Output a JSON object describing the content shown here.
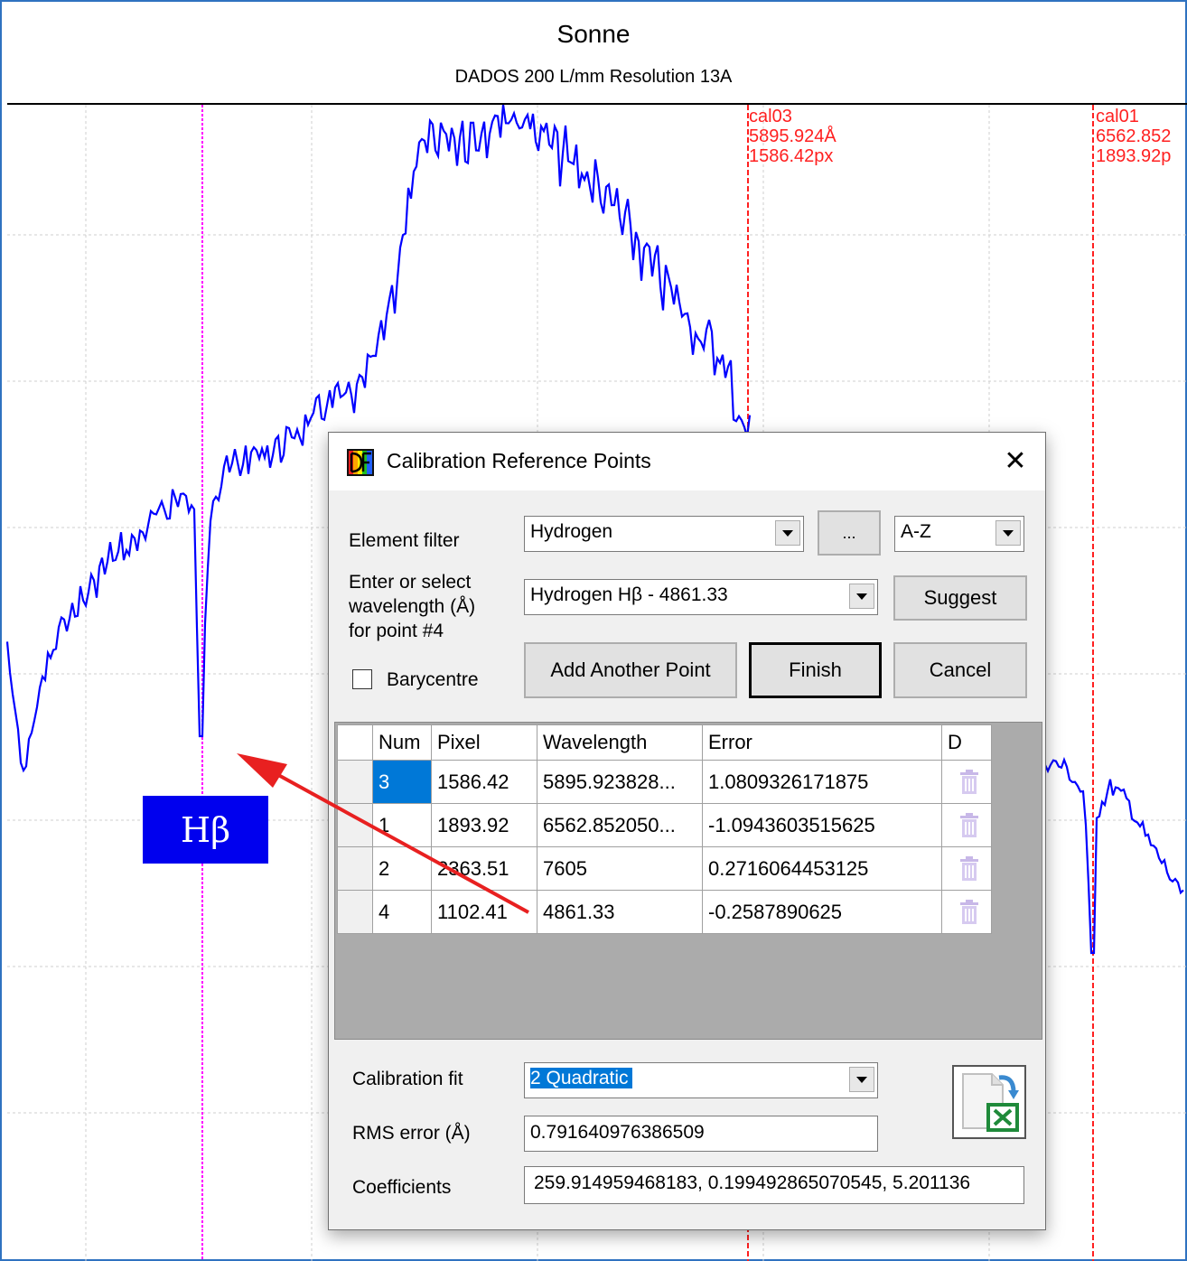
{
  "chart": {
    "title": "Sonne",
    "subtitle": "DADOS 200 L/mm Resolution 13A",
    "markers": [
      {
        "id": "cal03",
        "line1": "cal03",
        "line2": "5895.924Å",
        "line3": "1586.42px"
      },
      {
        "id": "cal01",
        "line1": "cal01",
        "line2": "6562.852",
        "line3": "1893.92p"
      }
    ],
    "annotation": "Hβ",
    "colors": {
      "spectrum": "#0000ff",
      "marker": "#ff2020",
      "cursor": "#ff00ff",
      "arrow": "#e82020",
      "annotation_bg": "#0000ee"
    }
  },
  "dialog": {
    "title": "Calibration Reference Points",
    "close_icon": "close-icon",
    "element_filter_label": "Element filter",
    "element_filter_value": "Hydrogen",
    "more_button": "...",
    "sort_value": "A-Z",
    "wavelength_label_1": "Enter or select",
    "wavelength_label_2": "wavelength (Å)",
    "wavelength_label_3": "for point #4",
    "wavelength_value": "Hydrogen Hβ - 4861.33",
    "suggest_button": "Suggest",
    "barycentre_label": "Barycentre",
    "barycentre_checked": false,
    "add_point_button": "Add Another Point",
    "finish_button": "Finish",
    "cancel_button": "Cancel",
    "table": {
      "headers": [
        "Num",
        "Pixel",
        "Wavelength",
        "Error",
        "D"
      ],
      "rows": [
        {
          "num": "3",
          "pixel": "1586.42",
          "wavelength": "5895.923828...",
          "error": "1.0809326171875"
        },
        {
          "num": "1",
          "pixel": "1893.92",
          "wavelength": "6562.852050...",
          "error": "-1.0943603515625"
        },
        {
          "num": "2",
          "pixel": "2363.51",
          "wavelength": "7605",
          "error": "0.2716064453125"
        },
        {
          "num": "4",
          "pixel": "1102.41",
          "wavelength": "4861.33",
          "error": "-0.2587890625"
        }
      ]
    },
    "calibration_fit_label": "Calibration fit",
    "calibration_fit_value": "2 Quadratic",
    "rms_label": "RMS error (Å)",
    "rms_value": "0.791640976386509",
    "coefficients_label": "Coefficients",
    "coefficients_value": "259.914959468183, 0.199492865070545, 5.201136"
  }
}
